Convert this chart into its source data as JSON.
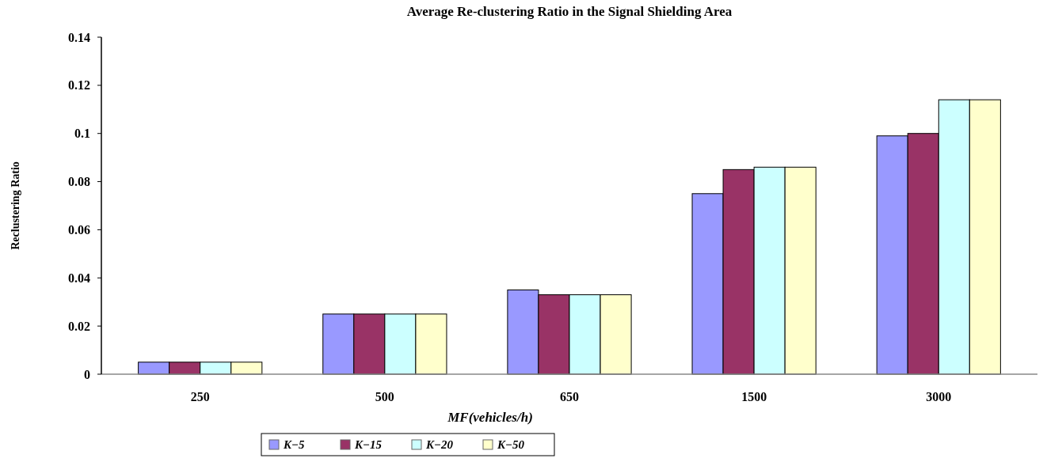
{
  "chart_data": {
    "type": "bar",
    "title": "Average Re-clustering Ratio in the Signal Shielding Area",
    "xlabel": "MF(vehicles/h)",
    "ylabel": "Reclustering Ratio",
    "categories": [
      "250",
      "500",
      "650",
      "1500",
      "3000"
    ],
    "series": [
      {
        "name": "K−5",
        "color": "#9999ff",
        "values": [
          0.005,
          0.025,
          0.035,
          0.075,
          0.099
        ]
      },
      {
        "name": "K−15",
        "color": "#993366",
        "values": [
          0.005,
          0.025,
          0.033,
          0.085,
          0.1
        ]
      },
      {
        "name": "K−20",
        "color": "#ccffff",
        "values": [
          0.005,
          0.025,
          0.033,
          0.086,
          0.114
        ]
      },
      {
        "name": "K−50",
        "color": "#ffffcc",
        "values": [
          0.005,
          0.025,
          0.033,
          0.086,
          0.114
        ]
      }
    ],
    "ylim": [
      0,
      0.14
    ],
    "yticks": [
      0,
      0.02,
      0.04,
      0.06,
      0.08,
      0.1,
      0.12,
      0.14
    ],
    "legend": "bottom"
  }
}
